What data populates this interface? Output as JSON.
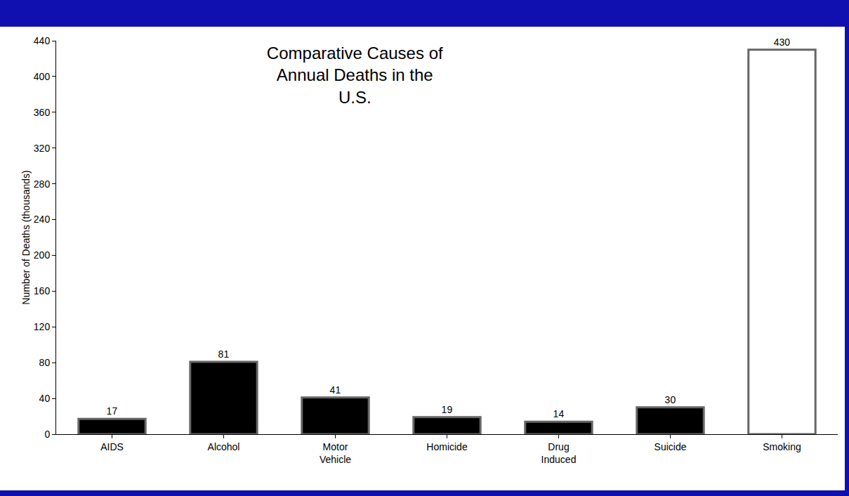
{
  "chart_data": {
    "type": "bar",
    "title": "Comparative Causes of Annual Deaths in the U.S.",
    "y_label": "Number of Deaths (thousands)",
    "categories": [
      "AIDS",
      "Alcohol",
      "Motor Vehicle",
      "Homicide",
      "Drug Induced",
      "Suicide",
      "Smoking"
    ],
    "values": [
      17,
      81,
      41,
      19,
      14,
      30,
      430
    ],
    "colors": [
      "#000000",
      "#000000",
      "#000000",
      "#000000",
      "#000000",
      "#000000",
      "#ffffff"
    ],
    "ylim": [
      0,
      440
    ],
    "yticks": [
      0,
      40,
      80,
      120,
      160,
      200,
      240,
      280,
      320,
      360,
      400,
      440
    ],
    "grid": false,
    "data_labels": true
  }
}
